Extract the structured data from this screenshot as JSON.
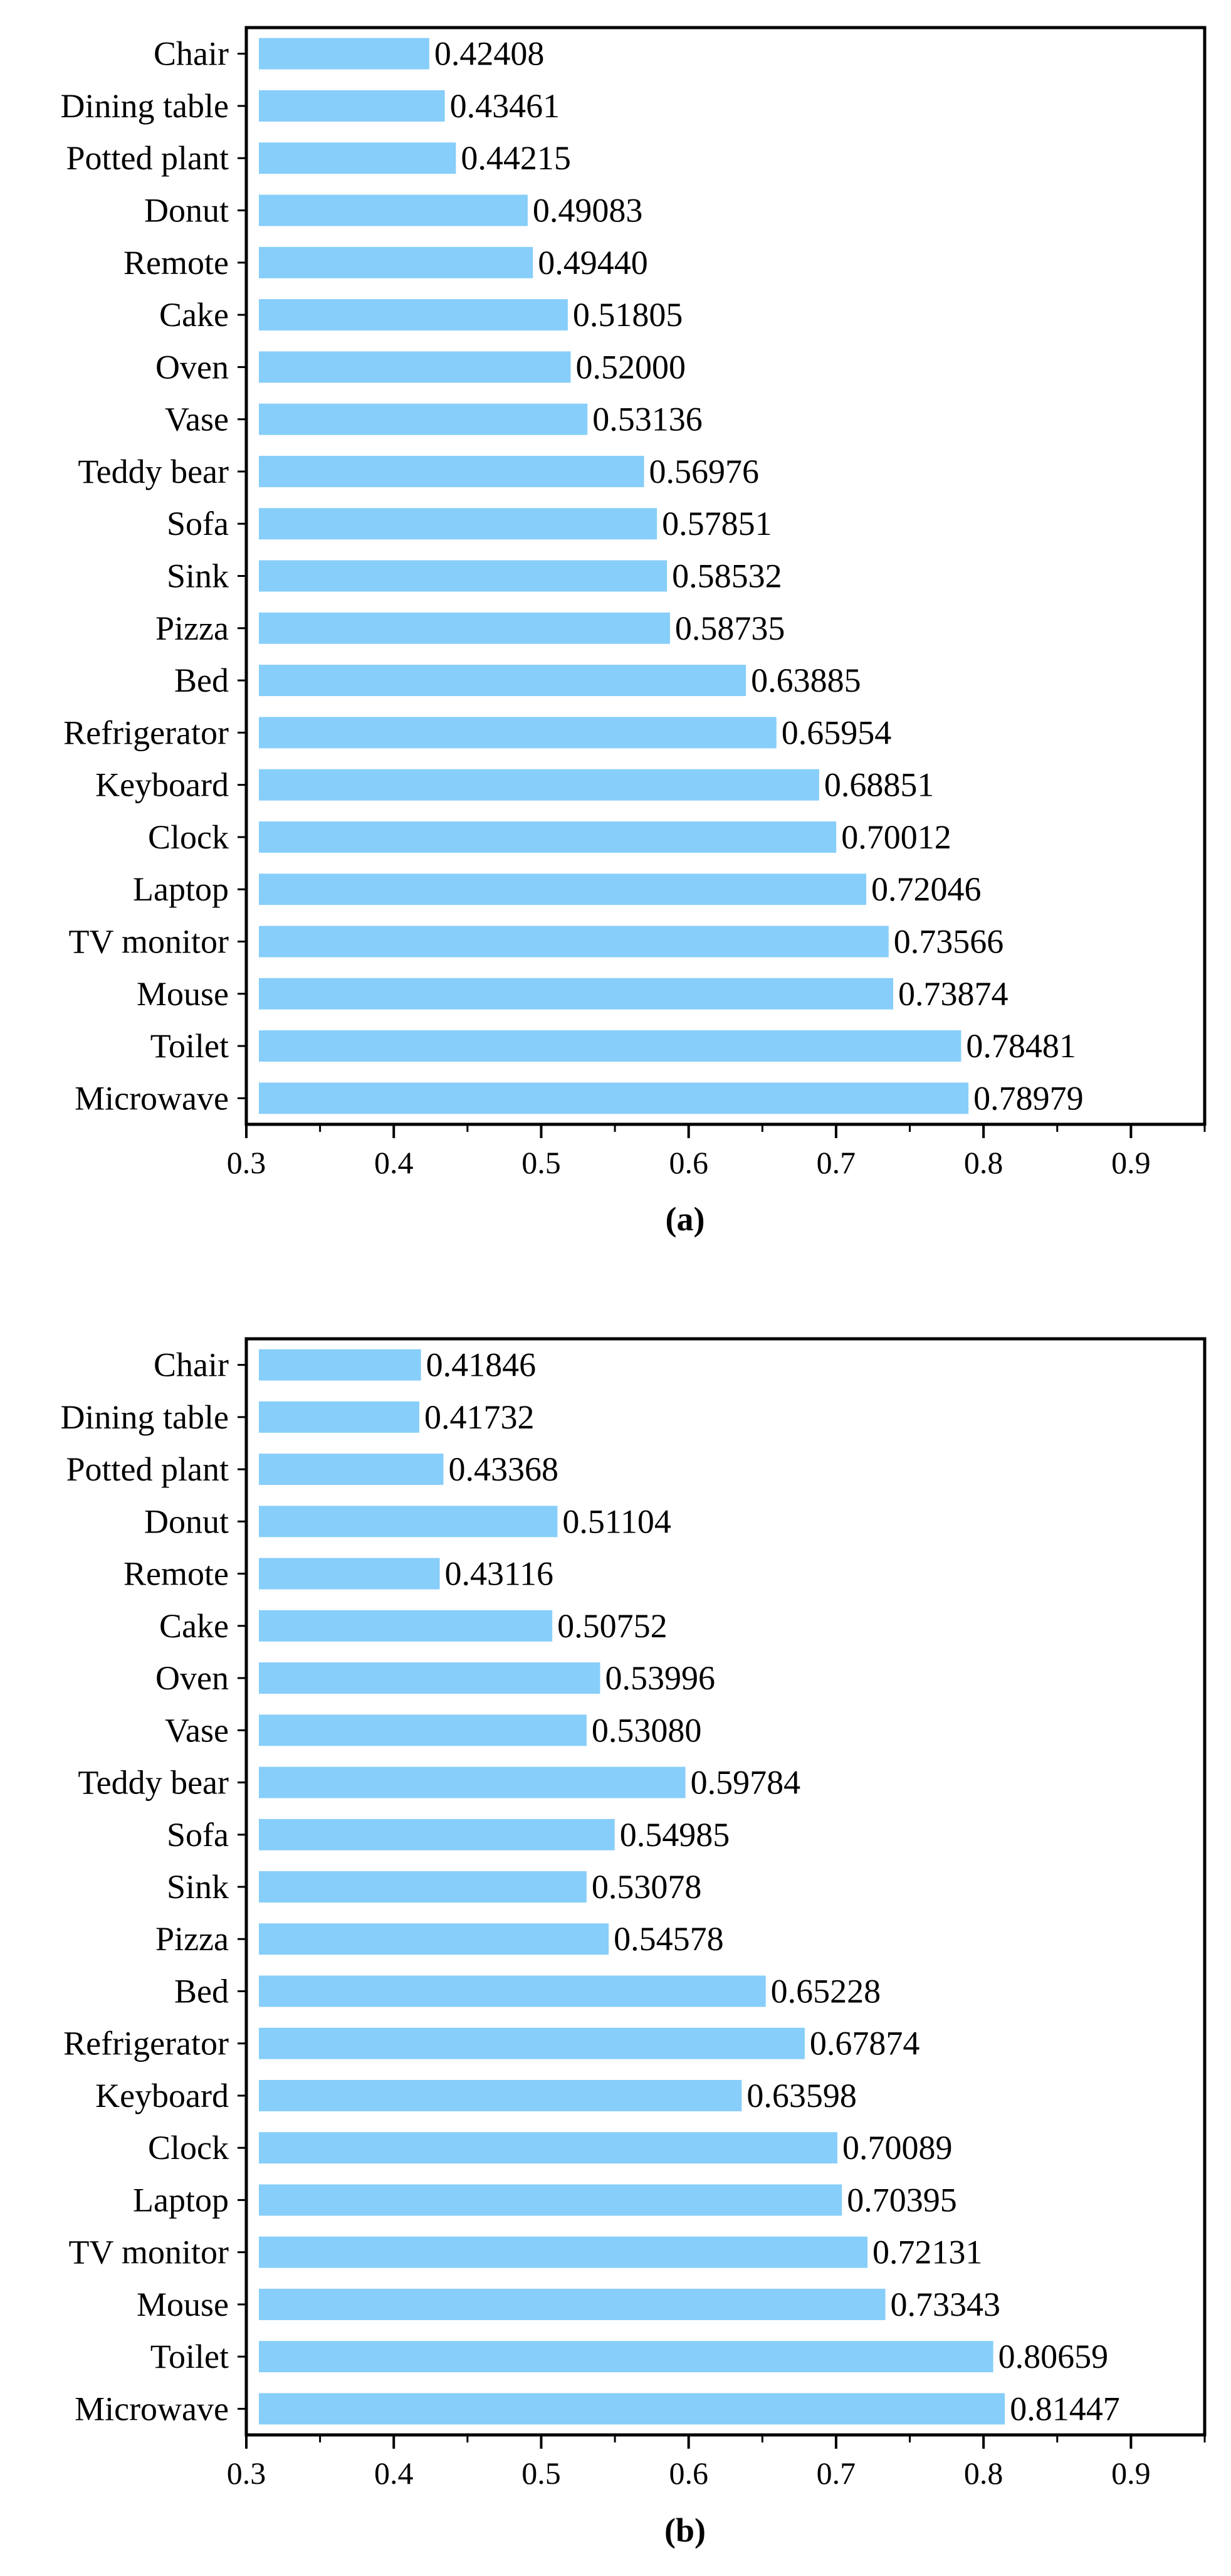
{
  "chart_data": [
    {
      "type": "bar",
      "orientation": "horizontal",
      "caption": "(a)",
      "categories": [
        "Chair",
        "Dining table",
        "Potted plant",
        "Donut",
        "Remote",
        "Cake",
        "Oven",
        "Vase",
        "Teddy bear",
        "Sofa",
        "Sink",
        "Pizza",
        "Bed",
        "Refrigerator",
        "Keyboard",
        "Clock",
        "Laptop",
        "TV monitor",
        "Mouse",
        "Toilet",
        "Microwave"
      ],
      "values": [
        0.42408,
        0.43461,
        0.44215,
        0.49083,
        0.4944,
        0.51805,
        0.52,
        0.53136,
        0.56976,
        0.57851,
        0.58532,
        0.58735,
        0.63885,
        0.65954,
        0.68851,
        0.70012,
        0.72046,
        0.73566,
        0.73874,
        0.78481,
        0.78979
      ],
      "value_labels": [
        "0.42408",
        "0.43461",
        "0.44215",
        "0.49083",
        "0.49440",
        "0.51805",
        "0.52000",
        "0.53136",
        "0.56976",
        "0.57851",
        "0.58532",
        "0.58735",
        "0.63885",
        "0.65954",
        "0.68851",
        "0.70012",
        "0.72046",
        "0.73566",
        "0.73874",
        "0.78481",
        "0.78979"
      ],
      "xlim": [
        0.3,
        0.95
      ],
      "xticks": [
        "0.3",
        "0.4",
        "0.5",
        "0.6",
        "0.7",
        "0.8",
        "0.9"
      ],
      "bar_color": "#87CEFA",
      "grid": false,
      "legend": "none"
    },
    {
      "type": "bar",
      "orientation": "horizontal",
      "caption": "(b)",
      "categories": [
        "Chair",
        "Dining table",
        "Potted plant",
        "Donut",
        "Remote",
        "Cake",
        "Oven",
        "Vase",
        "Teddy bear",
        "Sofa",
        "Sink",
        "Pizza",
        "Bed",
        "Refrigerator",
        "Keyboard",
        "Clock",
        "Laptop",
        "TV monitor",
        "Mouse",
        "Toilet",
        "Microwave"
      ],
      "values": [
        0.41846,
        0.41732,
        0.43368,
        0.51104,
        0.43116,
        0.50752,
        0.53996,
        0.5308,
        0.59784,
        0.54985,
        0.53078,
        0.54578,
        0.65228,
        0.67874,
        0.63598,
        0.70089,
        0.70395,
        0.72131,
        0.73343,
        0.80659,
        0.81447
      ],
      "value_labels": [
        "0.41846",
        "0.41732",
        "0.43368",
        "0.51104",
        "0.43116",
        "0.50752",
        "0.53996",
        "0.53080",
        "0.59784",
        "0.54985",
        "0.53078",
        "0.54578",
        "0.65228",
        "0.67874",
        "0.63598",
        "0.70089",
        "0.70395",
        "0.72131",
        "0.73343",
        "0.80659",
        "0.81447"
      ],
      "xlim": [
        0.3,
        0.95
      ],
      "xticks": [
        "0.3",
        "0.4",
        "0.5",
        "0.6",
        "0.7",
        "0.8",
        "0.9"
      ],
      "bar_color": "#87CEFA",
      "grid": false,
      "legend": "none"
    }
  ]
}
